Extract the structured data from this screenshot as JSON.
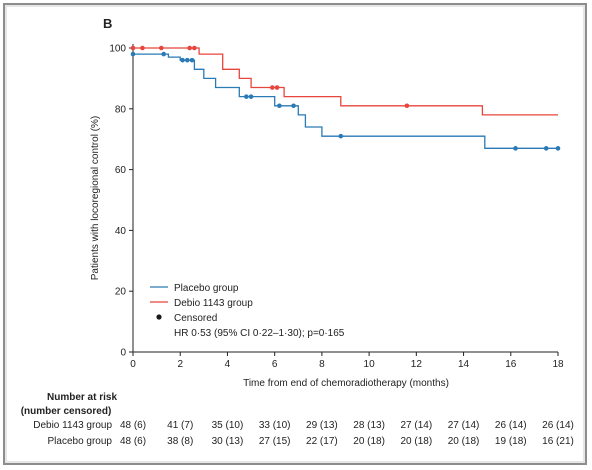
{
  "chart_data": {
    "type": "line",
    "panel_label": "B",
    "ylabel": "Patients with locoregional control (%)",
    "xlabel": "Time from end of chemoradiotherapy (months)",
    "xlim": [
      0,
      18
    ],
    "ylim": [
      0,
      100
    ],
    "x_ticks": [
      0,
      2,
      4,
      6,
      8,
      10,
      12,
      14,
      16,
      18
    ],
    "y_ticks": [
      0,
      20,
      40,
      60,
      80,
      100
    ],
    "grid": false,
    "legend_position": "bottom-left",
    "series": [
      {
        "name": "Placebo group",
        "color": "#2a7ab5",
        "steps": [
          [
            0,
            98
          ],
          [
            1.5,
            98
          ],
          [
            1.5,
            97
          ],
          [
            2,
            97
          ],
          [
            2,
            96
          ],
          [
            2.6,
            96
          ],
          [
            2.6,
            93
          ],
          [
            3,
            93
          ],
          [
            3,
            90
          ],
          [
            3.5,
            90
          ],
          [
            3.5,
            87
          ],
          [
            4.5,
            87
          ],
          [
            4.5,
            84
          ],
          [
            6,
            84
          ],
          [
            6,
            81
          ],
          [
            7,
            81
          ],
          [
            7,
            78
          ],
          [
            7.3,
            78
          ],
          [
            7.3,
            74
          ],
          [
            8,
            74
          ],
          [
            8,
            71
          ],
          [
            14.9,
            71
          ],
          [
            14.9,
            67
          ],
          [
            18,
            67
          ]
        ],
        "censored": [
          [
            0,
            98
          ],
          [
            1.3,
            98
          ],
          [
            2.1,
            96
          ],
          [
            2.3,
            96
          ],
          [
            2.5,
            96
          ],
          [
            4.8,
            84
          ],
          [
            5,
            84
          ],
          [
            6.2,
            81
          ],
          [
            6.8,
            81
          ],
          [
            8.8,
            71
          ],
          [
            16.2,
            67
          ],
          [
            17.5,
            67
          ],
          [
            18,
            67
          ]
        ]
      },
      {
        "name": "Debio 1143 group",
        "color": "#e8453c",
        "steps": [
          [
            0,
            100
          ],
          [
            2.8,
            100
          ],
          [
            2.8,
            98
          ],
          [
            3.8,
            98
          ],
          [
            3.8,
            93
          ],
          [
            4.5,
            93
          ],
          [
            4.5,
            90
          ],
          [
            5,
            90
          ],
          [
            5,
            87
          ],
          [
            6.4,
            87
          ],
          [
            6.4,
            84
          ],
          [
            8.8,
            84
          ],
          [
            8.8,
            81
          ],
          [
            14.8,
            81
          ],
          [
            14.8,
            78
          ],
          [
            18,
            78
          ]
        ],
        "censored": [
          [
            0,
            100
          ],
          [
            0.4,
            100
          ],
          [
            1.2,
            100
          ],
          [
            2.4,
            100
          ],
          [
            2.6,
            100
          ],
          [
            5.9,
            87
          ],
          [
            6.1,
            87
          ],
          [
            11.6,
            81
          ]
        ]
      }
    ],
    "legend": {
      "items": [
        "Placebo group",
        "Debio 1143 group"
      ],
      "censored_label": "Censored",
      "hr_text": "HR 0·53 (95% CI 0·22–1·30); p=0·165"
    },
    "risk_table": {
      "header_line1": "Number at risk",
      "header_line2": "(number censored)",
      "rows": [
        {
          "label": "Debio 1143 group",
          "values": [
            "48 (6)",
            "41 (7)",
            "35 (10)",
            "33 (10)",
            "29 (13)",
            "28 (13)",
            "27 (14)",
            "27 (14)",
            "26 (14)",
            "26 (14)"
          ]
        },
        {
          "label": "Placebo group",
          "values": [
            "48 (6)",
            "38 (8)",
            "30 (13)",
            "27 (15)",
            "22 (17)",
            "20 (18)",
            "20 (18)",
            "20 (18)",
            "19 (18)",
            "16 (21)"
          ]
        }
      ]
    }
  }
}
